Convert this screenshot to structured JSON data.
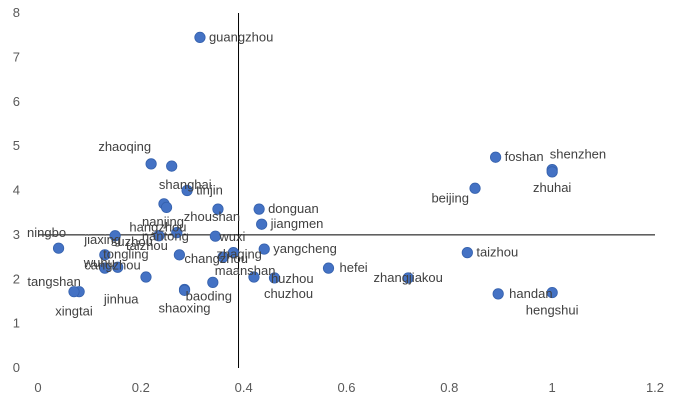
{
  "chart_data": {
    "type": "scatter",
    "title": "",
    "xlabel": "",
    "ylabel": "",
    "xlim": [
      0,
      1.2
    ],
    "ylim": [
      0,
      8
    ],
    "x_ticks": [
      0,
      0.2,
      0.4,
      0.6,
      0.8,
      1,
      1.2
    ],
    "x_tick_labels": [
      "0",
      "0.2",
      "0.4",
      "0.6",
      "0.8",
      "1",
      "1.2"
    ],
    "y_ticks": [
      0,
      1,
      2,
      3,
      4,
      5,
      6,
      7,
      8
    ],
    "y_tick_labels": [
      "0",
      "1",
      "2",
      "3",
      "4",
      "5",
      "6",
      "7",
      "8"
    ],
    "grid": false,
    "legend": "none",
    "reference_lines": {
      "x": 0.39,
      "y": 3.0
    },
    "marker_color": "#4472C4",
    "points": [
      {
        "label": "guangzhou",
        "x": 0.315,
        "y": 7.45,
        "label_pos": "right"
      },
      {
        "label": "shenzhen",
        "x": 1.0,
        "y": 4.47,
        "label_pos": "above-left"
      },
      {
        "label": "foshan",
        "x": 0.89,
        "y": 4.75,
        "label_pos": "right"
      },
      {
        "label": "zhuhai",
        "x": 1.0,
        "y": 4.42,
        "label_pos": "below"
      },
      {
        "label": "beijing",
        "x": 0.85,
        "y": 4.05,
        "label_pos": "below-left"
      },
      {
        "label": "zhaoqing",
        "x": 0.22,
        "y": 4.6,
        "label_pos": "above-left"
      },
      {
        "label": "shanghai",
        "x": 0.26,
        "y": 4.55,
        "label_pos": "below-left"
      },
      {
        "label": "tinjin",
        "x": 0.29,
        "y": 4.0,
        "label_pos": "right"
      },
      {
        "label": "nanjing",
        "x": 0.245,
        "y": 3.7,
        "label_pos": "below-left"
      },
      {
        "label": "hangzhou",
        "x": 0.25,
        "y": 3.62,
        "label_pos": "below-left"
      },
      {
        "label": "zhoushan",
        "x": 0.35,
        "y": 3.58,
        "label_pos": "below"
      },
      {
        "label": "donguan",
        "x": 0.43,
        "y": 3.58,
        "label_pos": "right"
      },
      {
        "label": "jiangmen",
        "x": 0.435,
        "y": 3.24,
        "label_pos": "right"
      },
      {
        "label": "ningbo",
        "x": 0.04,
        "y": 2.7,
        "label_pos": "above"
      },
      {
        "label": "jiaxing",
        "x": 0.15,
        "y": 2.98,
        "label_pos": "below-left"
      },
      {
        "label": "nantong",
        "x": 0.27,
        "y": 3.05,
        "label_pos": "below-left"
      },
      {
        "label": "suzhou",
        "x": 0.235,
        "y": 2.98,
        "label_pos": "below-left"
      },
      {
        "label": "wuxi",
        "x": 0.345,
        "y": 2.97,
        "label_pos": "right"
      },
      {
        "label": "changzhou",
        "x": 0.275,
        "y": 2.55,
        "label_pos": "right"
      },
      {
        "label": "zhaqing",
        "x": 0.38,
        "y": 2.6,
        "label_pos": "right"
      },
      {
        "label": "maanshan",
        "x": 0.36,
        "y": 2.5,
        "label_pos": "below"
      },
      {
        "label": "yangcheng",
        "x": 0.44,
        "y": 2.68,
        "label_pos": "right"
      },
      {
        "label": "wuhu",
        "x": 0.13,
        "y": 2.55,
        "label_pos": "below-left"
      },
      {
        "label": "tangshan",
        "x": 0.13,
        "y": 2.25,
        "label_pos": "below-left"
      },
      {
        "label": "cangzhou",
        "x": 0.155,
        "y": 2.27,
        "label_pos": "left"
      },
      {
        "label": "taizhou",
        "x": 0.21,
        "y": 2.05,
        "label_pos": "above-right"
      },
      {
        "label": "tongling",
        "x": 0.08,
        "y": 1.72,
        "label_pos": "above-right"
      },
      {
        "label": "jinhua",
        "x": 0.285,
        "y": 1.77,
        "label_pos": "below-left"
      },
      {
        "label": "baoding",
        "x": 0.34,
        "y": 1.93,
        "label_pos": "below"
      },
      {
        "label": "huzhou",
        "x": 0.42,
        "y": 2.05,
        "label_pos": "right"
      },
      {
        "label": "chuzhou",
        "x": 0.46,
        "y": 2.03,
        "label_pos": "below"
      },
      {
        "label": "shaoxing",
        "x": 0.285,
        "y": 1.75,
        "label_pos": "below"
      },
      {
        "label": "xingtai",
        "x": 0.07,
        "y": 1.72,
        "label_pos": "below"
      },
      {
        "label": "hefei",
        "x": 0.565,
        "y": 2.25,
        "label_pos": "right"
      },
      {
        "label": "zhangjiakou",
        "x": 0.72,
        "y": 2.03,
        "label_pos": "center"
      },
      {
        "label": "taizhou",
        "x": 0.835,
        "y": 2.6,
        "label_pos": "right"
      },
      {
        "label": "handan",
        "x": 0.895,
        "y": 1.67,
        "label_pos": "right"
      },
      {
        "label": "hengshui",
        "x": 1.0,
        "y": 1.7,
        "label_pos": "below"
      }
    ]
  }
}
